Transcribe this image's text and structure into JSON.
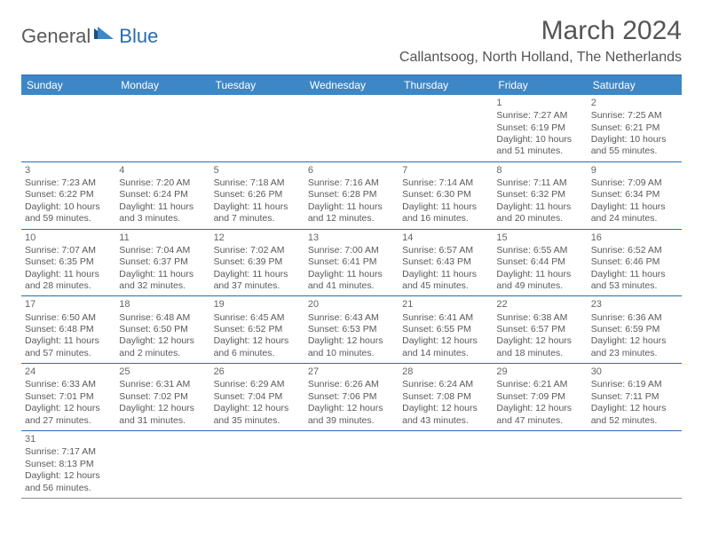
{
  "logo": {
    "part1": "General",
    "part2": "Blue"
  },
  "title": "March 2024",
  "location": "Callantsoog, North Holland, The Netherlands",
  "colors": {
    "header_bar": "#3d87c7",
    "border": "#2a6db0",
    "text": "#5a5a5a",
    "logo_gray": "#5a5a5a",
    "logo_blue": "#2a6db0",
    "logo_tri_dark": "#1f4e79",
    "logo_tri_light": "#3d87c7"
  },
  "day_headers": [
    "Sunday",
    "Monday",
    "Tuesday",
    "Wednesday",
    "Thursday",
    "Friday",
    "Saturday"
  ],
  "weeks": [
    [
      {
        "n": "",
        "lines": []
      },
      {
        "n": "",
        "lines": []
      },
      {
        "n": "",
        "lines": []
      },
      {
        "n": "",
        "lines": []
      },
      {
        "n": "",
        "lines": []
      },
      {
        "n": "1",
        "lines": [
          "Sunrise: 7:27 AM",
          "Sunset: 6:19 PM",
          "Daylight: 10 hours and 51 minutes."
        ]
      },
      {
        "n": "2",
        "lines": [
          "Sunrise: 7:25 AM",
          "Sunset: 6:21 PM",
          "Daylight: 10 hours and 55 minutes."
        ]
      }
    ],
    [
      {
        "n": "3",
        "lines": [
          "Sunrise: 7:23 AM",
          "Sunset: 6:22 PM",
          "Daylight: 10 hours and 59 minutes."
        ]
      },
      {
        "n": "4",
        "lines": [
          "Sunrise: 7:20 AM",
          "Sunset: 6:24 PM",
          "Daylight: 11 hours and 3 minutes."
        ]
      },
      {
        "n": "5",
        "lines": [
          "Sunrise: 7:18 AM",
          "Sunset: 6:26 PM",
          "Daylight: 11 hours and 7 minutes."
        ]
      },
      {
        "n": "6",
        "lines": [
          "Sunrise: 7:16 AM",
          "Sunset: 6:28 PM",
          "Daylight: 11 hours and 12 minutes."
        ]
      },
      {
        "n": "7",
        "lines": [
          "Sunrise: 7:14 AM",
          "Sunset: 6:30 PM",
          "Daylight: 11 hours and 16 minutes."
        ]
      },
      {
        "n": "8",
        "lines": [
          "Sunrise: 7:11 AM",
          "Sunset: 6:32 PM",
          "Daylight: 11 hours and 20 minutes."
        ]
      },
      {
        "n": "9",
        "lines": [
          "Sunrise: 7:09 AM",
          "Sunset: 6:34 PM",
          "Daylight: 11 hours and 24 minutes."
        ]
      }
    ],
    [
      {
        "n": "10",
        "lines": [
          "Sunrise: 7:07 AM",
          "Sunset: 6:35 PM",
          "Daylight: 11 hours and 28 minutes."
        ]
      },
      {
        "n": "11",
        "lines": [
          "Sunrise: 7:04 AM",
          "Sunset: 6:37 PM",
          "Daylight: 11 hours and 32 minutes."
        ]
      },
      {
        "n": "12",
        "lines": [
          "Sunrise: 7:02 AM",
          "Sunset: 6:39 PM",
          "Daylight: 11 hours and 37 minutes."
        ]
      },
      {
        "n": "13",
        "lines": [
          "Sunrise: 7:00 AM",
          "Sunset: 6:41 PM",
          "Daylight: 11 hours and 41 minutes."
        ]
      },
      {
        "n": "14",
        "lines": [
          "Sunrise: 6:57 AM",
          "Sunset: 6:43 PM",
          "Daylight: 11 hours and 45 minutes."
        ]
      },
      {
        "n": "15",
        "lines": [
          "Sunrise: 6:55 AM",
          "Sunset: 6:44 PM",
          "Daylight: 11 hours and 49 minutes."
        ]
      },
      {
        "n": "16",
        "lines": [
          "Sunrise: 6:52 AM",
          "Sunset: 6:46 PM",
          "Daylight: 11 hours and 53 minutes."
        ]
      }
    ],
    [
      {
        "n": "17",
        "lines": [
          "Sunrise: 6:50 AM",
          "Sunset: 6:48 PM",
          "Daylight: 11 hours and 57 minutes."
        ]
      },
      {
        "n": "18",
        "lines": [
          "Sunrise: 6:48 AM",
          "Sunset: 6:50 PM",
          "Daylight: 12 hours and 2 minutes."
        ]
      },
      {
        "n": "19",
        "lines": [
          "Sunrise: 6:45 AM",
          "Sunset: 6:52 PM",
          "Daylight: 12 hours and 6 minutes."
        ]
      },
      {
        "n": "20",
        "lines": [
          "Sunrise: 6:43 AM",
          "Sunset: 6:53 PM",
          "Daylight: 12 hours and 10 minutes."
        ]
      },
      {
        "n": "21",
        "lines": [
          "Sunrise: 6:41 AM",
          "Sunset: 6:55 PM",
          "Daylight: 12 hours and 14 minutes."
        ]
      },
      {
        "n": "22",
        "lines": [
          "Sunrise: 6:38 AM",
          "Sunset: 6:57 PM",
          "Daylight: 12 hours and 18 minutes."
        ]
      },
      {
        "n": "23",
        "lines": [
          "Sunrise: 6:36 AM",
          "Sunset: 6:59 PM",
          "Daylight: 12 hours and 23 minutes."
        ]
      }
    ],
    [
      {
        "n": "24",
        "lines": [
          "Sunrise: 6:33 AM",
          "Sunset: 7:01 PM",
          "Daylight: 12 hours and 27 minutes."
        ]
      },
      {
        "n": "25",
        "lines": [
          "Sunrise: 6:31 AM",
          "Sunset: 7:02 PM",
          "Daylight: 12 hours and 31 minutes."
        ]
      },
      {
        "n": "26",
        "lines": [
          "Sunrise: 6:29 AM",
          "Sunset: 7:04 PM",
          "Daylight: 12 hours and 35 minutes."
        ]
      },
      {
        "n": "27",
        "lines": [
          "Sunrise: 6:26 AM",
          "Sunset: 7:06 PM",
          "Daylight: 12 hours and 39 minutes."
        ]
      },
      {
        "n": "28",
        "lines": [
          "Sunrise: 6:24 AM",
          "Sunset: 7:08 PM",
          "Daylight: 12 hours and 43 minutes."
        ]
      },
      {
        "n": "29",
        "lines": [
          "Sunrise: 6:21 AM",
          "Sunset: 7:09 PM",
          "Daylight: 12 hours and 47 minutes."
        ]
      },
      {
        "n": "30",
        "lines": [
          "Sunrise: 6:19 AM",
          "Sunset: 7:11 PM",
          "Daylight: 12 hours and 52 minutes."
        ]
      }
    ],
    [
      {
        "n": "31",
        "lines": [
          "Sunrise: 7:17 AM",
          "Sunset: 8:13 PM",
          "Daylight: 12 hours and 56 minutes."
        ]
      },
      {
        "n": "",
        "lines": []
      },
      {
        "n": "",
        "lines": []
      },
      {
        "n": "",
        "lines": []
      },
      {
        "n": "",
        "lines": []
      },
      {
        "n": "",
        "lines": []
      },
      {
        "n": "",
        "lines": []
      }
    ]
  ]
}
